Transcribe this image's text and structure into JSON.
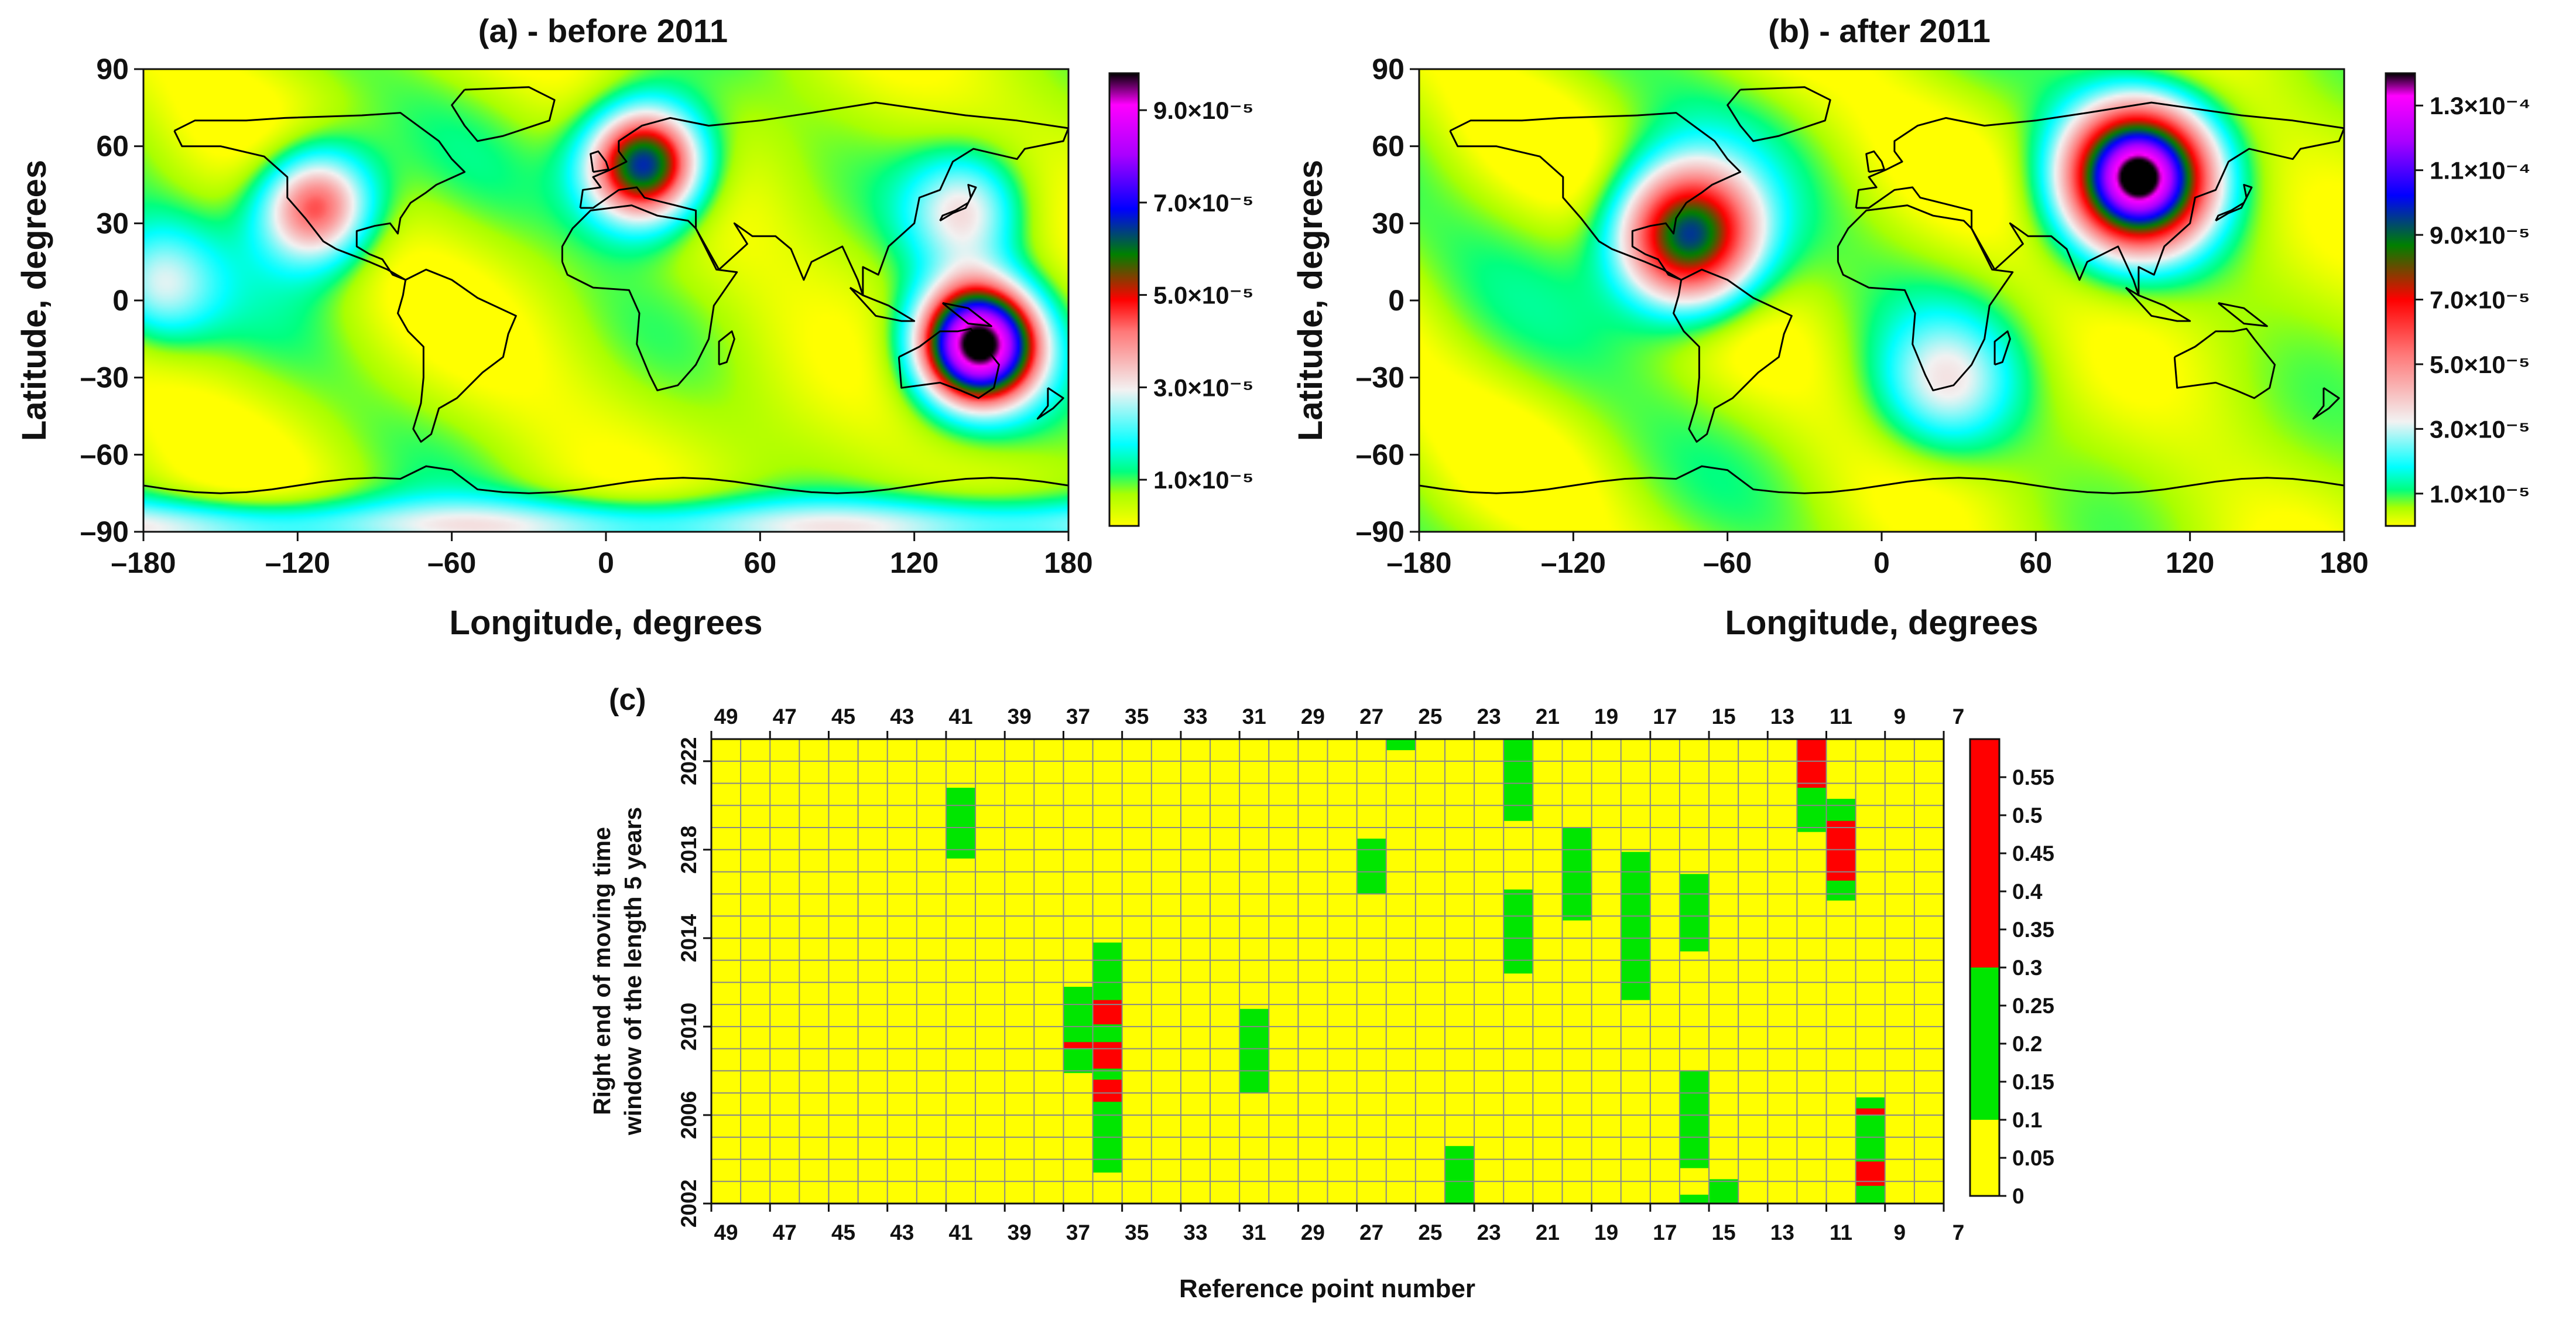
{
  "chart_data": [
    {
      "id": "a",
      "type": "heatmap",
      "title": "(a) - before 2011",
      "xlabel": "Longitude, degrees",
      "ylabel": "Latitude, degrees",
      "xlim": [
        -180,
        180
      ],
      "ylim": [
        -90,
        90
      ],
      "xticks": [
        -180,
        -120,
        -60,
        0,
        60,
        120,
        180
      ],
      "xtick_labels": [
        "–180",
        "–120",
        "–60",
        "0",
        "60",
        "120",
        "180"
      ],
      "yticks": [
        90,
        60,
        30,
        0,
        -30,
        -60,
        -90
      ],
      "ytick_labels": [
        "90",
        "60",
        "30",
        "0",
        "–30",
        "–60",
        "–90"
      ],
      "colorbar": {
        "range": [
          0,
          9.8e-05
        ],
        "ticks": [
          1e-05,
          3e-05,
          5e-05,
          7e-05,
          9e-05
        ],
        "labels": [
          "1.0×10⁻⁵",
          "3.0×10⁻⁵",
          "5.0×10⁻⁵",
          "7.0×10⁻⁵",
          "9.0×10⁻⁵"
        ]
      },
      "hotspots": [
        {
          "lon": 15,
          "lat": 53,
          "peak": 6.8e-05
        },
        {
          "lon": -113,
          "lat": 37,
          "peak": 4.6e-05
        },
        {
          "lon": 145,
          "lat": -17,
          "peak": 9.8e-05
        },
        {
          "lon": 140,
          "lat": 35,
          "peak": 2.6e-05
        },
        {
          "lon": -175,
          "lat": 5,
          "peak": 2.2e-05
        }
      ],
      "notes": [
        "high values near Antarctic band (-85)"
      ]
    },
    {
      "id": "b",
      "type": "heatmap",
      "title": "(b) - after 2011",
      "xlabel": "Longitude, degrees",
      "ylabel": "Latitude, degrees",
      "xlim": [
        -180,
        180
      ],
      "ylim": [
        -90,
        90
      ],
      "xticks": [
        -180,
        -120,
        -60,
        0,
        60,
        120,
        180
      ],
      "xtick_labels": [
        "–180",
        "–120",
        "–60",
        "0",
        "60",
        "120",
        "180"
      ],
      "yticks": [
        90,
        60,
        30,
        0,
        -30,
        -60,
        -90
      ],
      "ytick_labels": [
        "90",
        "60",
        "30",
        "0",
        "–30",
        "–60",
        "–90"
      ],
      "colorbar": {
        "range": [
          0,
          0.00014
        ],
        "ticks": [
          1e-05,
          3e-05,
          5e-05,
          7e-05,
          9e-05,
          0.00011,
          0.00013
        ],
        "labels": [
          "1.0×10⁻⁵",
          "3.0×10⁻⁵",
          "5.0×10⁻⁵",
          "7.0×10⁻⁵",
          "9.0×10⁻⁵",
          "1.1×10⁻⁴",
          "1.3×10⁻⁴"
        ]
      },
      "hotspots": [
        {
          "lon": 100,
          "lat": 48,
          "peak": 0.00014
        },
        {
          "lon": -75,
          "lat": 25,
          "peak": 9.5e-05
        },
        {
          "lon": 25,
          "lat": -32,
          "peak": 2.6e-05
        }
      ]
    },
    {
      "id": "c",
      "type": "heatmap",
      "title": "(c)",
      "xlabel": "Reference point number",
      "ylabel_line1": "Right end of moving time",
      "ylabel_line2": "window of the length 5 years",
      "x_range": [
        49,
        7
      ],
      "x_tick_labels": [
        "49",
        "47",
        "45",
        "43",
        "41",
        "39",
        "37",
        "35",
        "33",
        "31",
        "29",
        "27",
        "25",
        "23",
        "21",
        "19",
        "17",
        "15",
        "13",
        "11",
        "9",
        "7"
      ],
      "y_range": [
        2002,
        2023
      ],
      "y_tick_labels": [
        "2002",
        "2006",
        "2010",
        "2014",
        "2018",
        "2022"
      ],
      "colorbar": {
        "range": [
          0,
          0.6
        ],
        "labels": [
          "0",
          "0.05",
          "0.1",
          "0.15",
          "0.2",
          "0.25",
          "0.3",
          "0.35",
          "0.4",
          "0.45",
          "0.5",
          "0.55"
        ],
        "bins": [
          {
            "min": 0,
            "max": 0.1,
            "color": "#ffff00"
          },
          {
            "min": 0.1,
            "max": 0.3,
            "color": "#00e600"
          },
          {
            "min": 0.3,
            "max": 0.6,
            "color": "#ff0000"
          }
        ]
      },
      "background_value": 0.05,
      "cells": [
        {
          "point": 41,
          "y0": 2017.6,
          "y1": 2020.8,
          "value": 0.2
        },
        {
          "point": 37,
          "y0": 2007.9,
          "y1": 2011.8,
          "value": 0.2
        },
        {
          "point": 37,
          "y0": 2009.0,
          "y1": 2009.3,
          "value": 0.4
        },
        {
          "point": 36,
          "y0": 2003.4,
          "y1": 2013.8,
          "value": 0.2
        },
        {
          "point": 36,
          "y0": 2010.1,
          "y1": 2011.2,
          "value": 0.4
        },
        {
          "point": 36,
          "y0": 2008.1,
          "y1": 2009.3,
          "value": 0.4
        },
        {
          "point": 36,
          "y0": 2006.6,
          "y1": 2007.6,
          "value": 0.4
        },
        {
          "point": 31,
          "y0": 2007.0,
          "y1": 2010.8,
          "value": 0.2
        },
        {
          "point": 27,
          "y0": 2016.0,
          "y1": 2018.5,
          "value": 0.2
        },
        {
          "point": 26,
          "y0": 2022.5,
          "y1": 2023.0,
          "value": 0.2
        },
        {
          "point": 24,
          "y0": 2002.0,
          "y1": 2004.6,
          "value": 0.2
        },
        {
          "point": 22,
          "y0": 2019.3,
          "y1": 2023.0,
          "value": 0.2
        },
        {
          "point": 22,
          "y0": 2012.4,
          "y1": 2016.2,
          "value": 0.2
        },
        {
          "point": 20,
          "y0": 2014.8,
          "y1": 2019.0,
          "value": 0.2
        },
        {
          "point": 18,
          "y0": 2011.2,
          "y1": 2017.9,
          "value": 0.2
        },
        {
          "point": 16,
          "y0": 2013.4,
          "y1": 2016.9,
          "value": 0.2
        },
        {
          "point": 16,
          "y0": 2003.6,
          "y1": 2008.0,
          "value": 0.2
        },
        {
          "point": 16,
          "y0": 2002.0,
          "y1": 2002.4,
          "value": 0.2
        },
        {
          "point": 15,
          "y0": 2002.0,
          "y1": 2003.1,
          "value": 0.2
        },
        {
          "point": 12,
          "y0": 2018.8,
          "y1": 2023.0,
          "value": 0.2
        },
        {
          "point": 12,
          "y0": 2020.8,
          "y1": 2023.0,
          "value": 0.4
        },
        {
          "point": 11,
          "y0": 2015.7,
          "y1": 2020.3,
          "value": 0.2
        },
        {
          "point": 11,
          "y0": 2016.6,
          "y1": 2019.3,
          "value": 0.4
        },
        {
          "point": 10,
          "y0": 2002.0,
          "y1": 2006.8,
          "value": 0.2
        },
        {
          "point": 10,
          "y0": 2002.8,
          "y1": 2003.9,
          "value": 0.4
        },
        {
          "point": 10,
          "y0": 2006.0,
          "y1": 2006.3,
          "value": 0.4
        }
      ]
    }
  ]
}
